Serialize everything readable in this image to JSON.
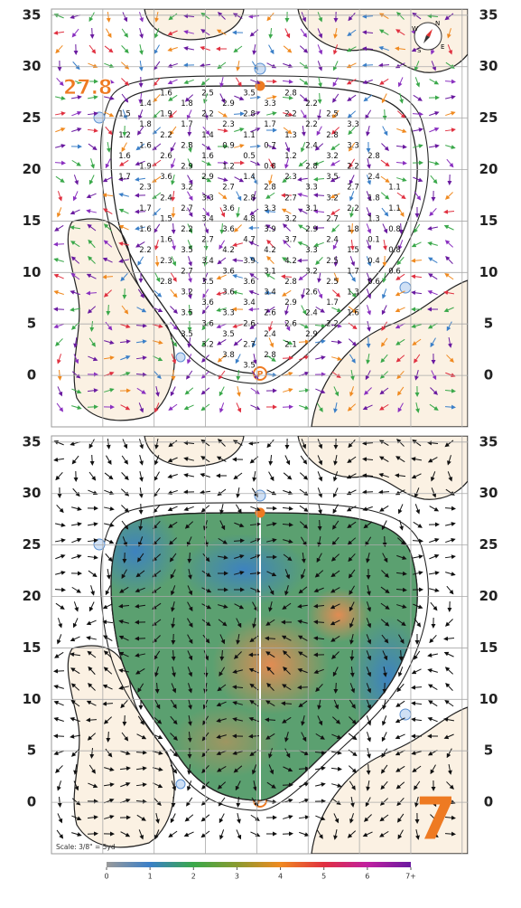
{
  "axis": {
    "ylim": [
      -5,
      35.6
    ],
    "yticks": [
      0,
      5,
      10,
      15,
      20,
      25,
      30,
      35
    ]
  },
  "green_depth": 27.8,
  "hole": 7,
  "scale_note": "Scale: 3/8\" = 5yd",
  "slope_grid": [
    [
      null,
      null,
      1.6,
      null,
      2.5,
      null,
      3.5,
      null,
      2.8,
      null,
      null,
      null,
      null,
      null
    ],
    [
      null,
      1.4,
      null,
      1.8,
      null,
      2.9,
      null,
      3.3,
      null,
      2.2,
      null,
      null,
      null,
      null
    ],
    [
      1.5,
      null,
      1.9,
      null,
      2.2,
      null,
      2.8,
      null,
      2.2,
      null,
      2.5,
      null,
      null,
      null
    ],
    [
      null,
      1.8,
      null,
      1.7,
      null,
      2.3,
      null,
      1.7,
      null,
      2.2,
      null,
      3.3,
      null,
      null
    ],
    [
      1.2,
      null,
      2.2,
      null,
      1.4,
      null,
      1.1,
      null,
      1.3,
      null,
      2.8,
      null,
      null,
      null
    ],
    [
      null,
      1.6,
      null,
      2.8,
      null,
      0.9,
      null,
      0.7,
      null,
      2.4,
      null,
      3.3,
      null,
      null
    ],
    [
      1.6,
      null,
      2.6,
      null,
      1.6,
      null,
      0.5,
      null,
      1.2,
      null,
      3.2,
      null,
      2.8,
      null
    ],
    [
      null,
      1.9,
      null,
      2.9,
      null,
      1.2,
      null,
      0.8,
      null,
      2.8,
      null,
      2.2,
      null,
      null
    ],
    [
      1.7,
      null,
      3.6,
      null,
      2.9,
      null,
      1.4,
      null,
      2.3,
      null,
      3.5,
      null,
      2.4,
      null
    ],
    [
      null,
      2.3,
      null,
      3.2,
      null,
      2.7,
      null,
      2.8,
      null,
      3.3,
      null,
      2.7,
      null,
      1.1
    ],
    [
      null,
      null,
      2.4,
      null,
      3.3,
      null,
      2.8,
      null,
      2.7,
      null,
      3.2,
      null,
      1.8,
      null
    ],
    [
      null,
      1.7,
      null,
      2.7,
      null,
      3.6,
      null,
      3.3,
      null,
      3.1,
      null,
      2.2,
      null,
      1.1
    ],
    [
      null,
      null,
      1.5,
      null,
      3.4,
      null,
      4.8,
      null,
      3.2,
      null,
      2.7,
      null,
      1.3,
      null
    ],
    [
      null,
      1.6,
      null,
      2.2,
      null,
      3.6,
      null,
      3.9,
      null,
      2.9,
      null,
      1.8,
      null,
      0.8
    ],
    [
      null,
      null,
      1.6,
      null,
      2.7,
      null,
      4.7,
      null,
      3.7,
      null,
      2.4,
      null,
      0.1,
      null
    ],
    [
      null,
      2.2,
      null,
      3.5,
      null,
      4.2,
      null,
      4.2,
      null,
      3.3,
      null,
      1.5,
      null,
      0.8
    ],
    [
      null,
      null,
      2.3,
      null,
      3.4,
      null,
      3.9,
      null,
      4.2,
      null,
      2.5,
      null,
      0.4,
      null
    ],
    [
      null,
      null,
      null,
      2.7,
      null,
      3.6,
      null,
      3.1,
      null,
      3.2,
      null,
      1.7,
      null,
      0.6
    ],
    [
      null,
      null,
      2.8,
      null,
      3.5,
      null,
      3.6,
      null,
      2.8,
      null,
      2.5,
      null,
      0.6,
      null
    ],
    [
      null,
      null,
      null,
      3.2,
      null,
      3.6,
      null,
      3.4,
      null,
      2.6,
      null,
      1.3,
      null,
      null
    ],
    [
      null,
      null,
      null,
      null,
      3.6,
      null,
      3.4,
      null,
      2.9,
      null,
      1.7,
      null,
      null,
      null
    ],
    [
      null,
      null,
      null,
      3.5,
      null,
      3.3,
      null,
      2.6,
      null,
      2.4,
      null,
      1.6,
      null,
      null
    ],
    [
      null,
      null,
      null,
      null,
      3.6,
      null,
      2.6,
      null,
      2.6,
      null,
      2.2,
      null,
      null,
      null
    ],
    [
      null,
      null,
      null,
      3.5,
      null,
      3.5,
      null,
      2.4,
      null,
      2.9,
      null,
      null,
      null,
      null
    ],
    [
      null,
      null,
      null,
      null,
      3.2,
      null,
      2.7,
      null,
      2.1,
      null,
      null,
      null,
      null,
      null
    ],
    [
      null,
      null,
      null,
      null,
      null,
      3.8,
      null,
      2.8,
      null,
      null,
      null,
      null,
      null,
      null
    ],
    [
      null,
      null,
      null,
      null,
      null,
      null,
      3.5,
      null,
      null,
      null,
      null,
      null,
      null,
      null
    ]
  ],
  "legend": {
    "lim": [
      0,
      7
    ],
    "ticks": [
      0,
      1,
      2,
      3,
      4,
      5,
      6,
      {
        "value": 7,
        "label": "7+"
      }
    ],
    "colors": [
      "#9a9a9a",
      "#3a7fc8",
      "#3aa84a",
      "#8a9a30",
      "#f08a20",
      "#e03040",
      "#c020a0",
      "#6a1aa0"
    ]
  }
}
